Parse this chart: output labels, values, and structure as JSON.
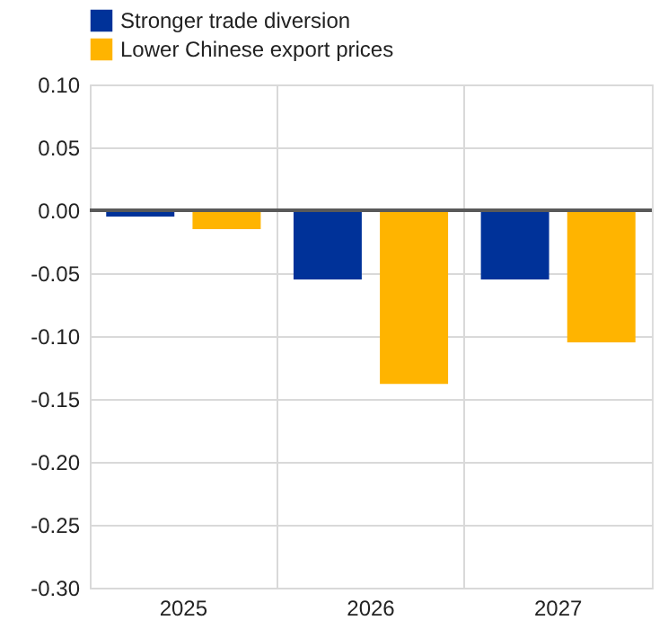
{
  "chart_data": {
    "type": "bar",
    "categories": [
      "2025",
      "2026",
      "2027"
    ],
    "series": [
      {
        "name": "Stronger trade diversion",
        "color": "#003299",
        "values": [
          -0.005,
          -0.055,
          -0.055
        ]
      },
      {
        "name": "Lower Chinese export prices",
        "color": "#ffb400",
        "values": [
          -0.015,
          -0.138,
          -0.105
        ]
      }
    ],
    "ylim": [
      -0.3,
      0.1
    ],
    "yticks": [
      {
        "value": -0.3,
        "label": "-0.30"
      },
      {
        "value": -0.25,
        "label": "-0.25"
      },
      {
        "value": -0.2,
        "label": "-0.20"
      },
      {
        "value": -0.15,
        "label": "-0.15"
      },
      {
        "value": -0.1,
        "label": "-0.10"
      },
      {
        "value": -0.05,
        "label": "-0.05"
      },
      {
        "value": 0,
        "label": "0.00"
      },
      {
        "value": 0.05,
        "label": "0.05"
      },
      {
        "value": 0.1,
        "label": "0.10"
      }
    ],
    "grid": true,
    "legend": "top left",
    "ref_lines": [
      {
        "axis": "y",
        "value": 0,
        "color": "#595959"
      }
    ]
  }
}
